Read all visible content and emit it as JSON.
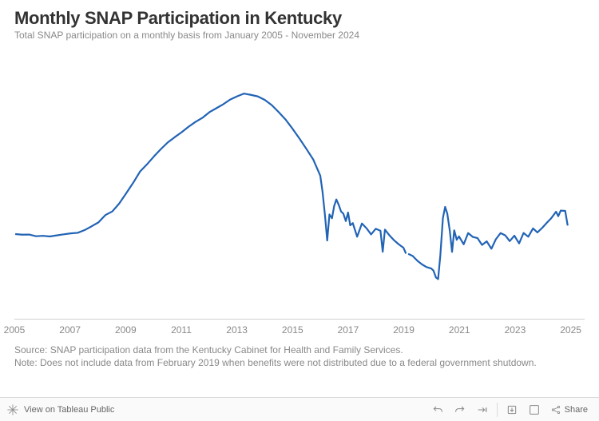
{
  "title": "Monthly SNAP Participation in Kentucky",
  "subtitle": "Total SNAP participation on a monthly basis from January 2005 - November 2024",
  "source_note": "Source: SNAP participation data from the Kentucky Cabinet for Health and Family Services.",
  "method_note": "Note: Does not include data from February 2019 when benefits were not distributed due to a federal government shutdown.",
  "chart": {
    "type": "line",
    "line_color": "#2163b5",
    "line_width": 2.2,
    "background_color": "#ffffff",
    "axis_color": "#d0d0d0",
    "tick_label_color": "#898989",
    "tick_fontsize": 12,
    "x_range": [
      2005,
      2025.5
    ],
    "x_ticks": [
      2005,
      2007,
      2009,
      2011,
      2013,
      2015,
      2017,
      2019,
      2021,
      2023,
      2025
    ],
    "y_range": [
      400000,
      900000
    ],
    "segments": [
      {
        "points": [
          [
            2005.0,
            561000
          ],
          [
            2005.25,
            560000
          ],
          [
            2005.5,
            560200
          ],
          [
            2005.75,
            557000
          ],
          [
            2006.0,
            557800
          ],
          [
            2006.25,
            556500
          ],
          [
            2006.5,
            558600
          ],
          [
            2006.75,
            560600
          ],
          [
            2007.0,
            562400
          ],
          [
            2007.25,
            563500
          ],
          [
            2007.5,
            568600
          ],
          [
            2007.75,
            575700
          ],
          [
            2008.0,
            583300
          ],
          [
            2008.25,
            597200
          ],
          [
            2008.5,
            604100
          ],
          [
            2008.75,
            619300
          ],
          [
            2009.0,
            638700
          ],
          [
            2009.25,
            658400
          ],
          [
            2009.5,
            680000
          ],
          [
            2009.75,
            693600
          ],
          [
            2010.0,
            708700
          ],
          [
            2010.25,
            722700
          ],
          [
            2010.5,
            735400
          ],
          [
            2010.75,
            745500
          ],
          [
            2011.0,
            754900
          ],
          [
            2011.25,
            765300
          ],
          [
            2011.5,
            774600
          ],
          [
            2011.75,
            782200
          ],
          [
            2012.0,
            792900
          ],
          [
            2012.25,
            800500
          ],
          [
            2012.5,
            808000
          ],
          [
            2012.75,
            817000
          ],
          [
            2013.0,
            823100
          ],
          [
            2013.25,
            828400
          ],
          [
            2013.5,
            825900
          ],
          [
            2013.75,
            822900
          ],
          [
            2014.0,
            816200
          ],
          [
            2014.25,
            806400
          ],
          [
            2014.5,
            793000
          ],
          [
            2014.75,
            778800
          ],
          [
            2015.0,
            761400
          ],
          [
            2015.25,
            742700
          ],
          [
            2015.5,
            723000
          ],
          [
            2015.75,
            702600
          ],
          [
            2016.0,
            672100
          ],
          [
            2016.08,
            641800
          ],
          [
            2016.17,
            596600
          ],
          [
            2016.25,
            549000
          ],
          [
            2016.33,
            598400
          ],
          [
            2016.42,
            591200
          ],
          [
            2016.5,
            614300
          ],
          [
            2016.58,
            627000
          ],
          [
            2016.67,
            615700
          ],
          [
            2016.75,
            603900
          ],
          [
            2016.83,
            600100
          ],
          [
            2016.92,
            585700
          ],
          [
            2017.0,
            602100
          ],
          [
            2017.08,
            577700
          ],
          [
            2017.17,
            582000
          ],
          [
            2017.33,
            556100
          ],
          [
            2017.5,
            581200
          ],
          [
            2017.67,
            572000
          ],
          [
            2017.83,
            560400
          ],
          [
            2018.0,
            571200
          ],
          [
            2018.17,
            567400
          ],
          [
            2018.25,
            527400
          ],
          [
            2018.33,
            569600
          ],
          [
            2018.5,
            558200
          ],
          [
            2018.67,
            548800
          ],
          [
            2018.83,
            541500
          ],
          [
            2019.0,
            535000
          ],
          [
            2019.09,
            524000
          ]
        ]
      },
      {
        "points": [
          [
            2019.17,
            523500
          ],
          [
            2019.33,
            519600
          ],
          [
            2019.5,
            510300
          ],
          [
            2019.67,
            503400
          ],
          [
            2019.83,
            498400
          ],
          [
            2020.0,
            495600
          ],
          [
            2020.08,
            491700
          ],
          [
            2020.17,
            478500
          ],
          [
            2020.25,
            475400
          ],
          [
            2020.33,
            521200
          ],
          [
            2020.42,
            591400
          ],
          [
            2020.5,
            612800
          ],
          [
            2020.58,
            600100
          ],
          [
            2020.67,
            566800
          ],
          [
            2020.75,
            527300
          ],
          [
            2020.83,
            568200
          ],
          [
            2020.92,
            550200
          ],
          [
            2021.0,
            556600
          ],
          [
            2021.17,
            541600
          ],
          [
            2021.33,
            563000
          ],
          [
            2021.5,
            555600
          ],
          [
            2021.67,
            553400
          ],
          [
            2021.83,
            540400
          ],
          [
            2022.0,
            547200
          ],
          [
            2022.17,
            533200
          ],
          [
            2022.33,
            551200
          ],
          [
            2022.5,
            563000
          ],
          [
            2022.67,
            558600
          ],
          [
            2022.83,
            547800
          ],
          [
            2023.0,
            558000
          ],
          [
            2023.17,
            543400
          ],
          [
            2023.33,
            563200
          ],
          [
            2023.5,
            556000
          ],
          [
            2023.67,
            571800
          ],
          [
            2023.83,
            564200
          ],
          [
            2024.0,
            572900
          ],
          [
            2024.17,
            582800
          ],
          [
            2024.33,
            591400
          ],
          [
            2024.5,
            603600
          ],
          [
            2024.58,
            595200
          ],
          [
            2024.67,
            605700
          ],
          [
            2024.83,
            605200
          ],
          [
            2024.92,
            577400
          ]
        ]
      }
    ]
  },
  "toolbar": {
    "view_label": "View on Tableau Public",
    "share_label": "Share"
  }
}
